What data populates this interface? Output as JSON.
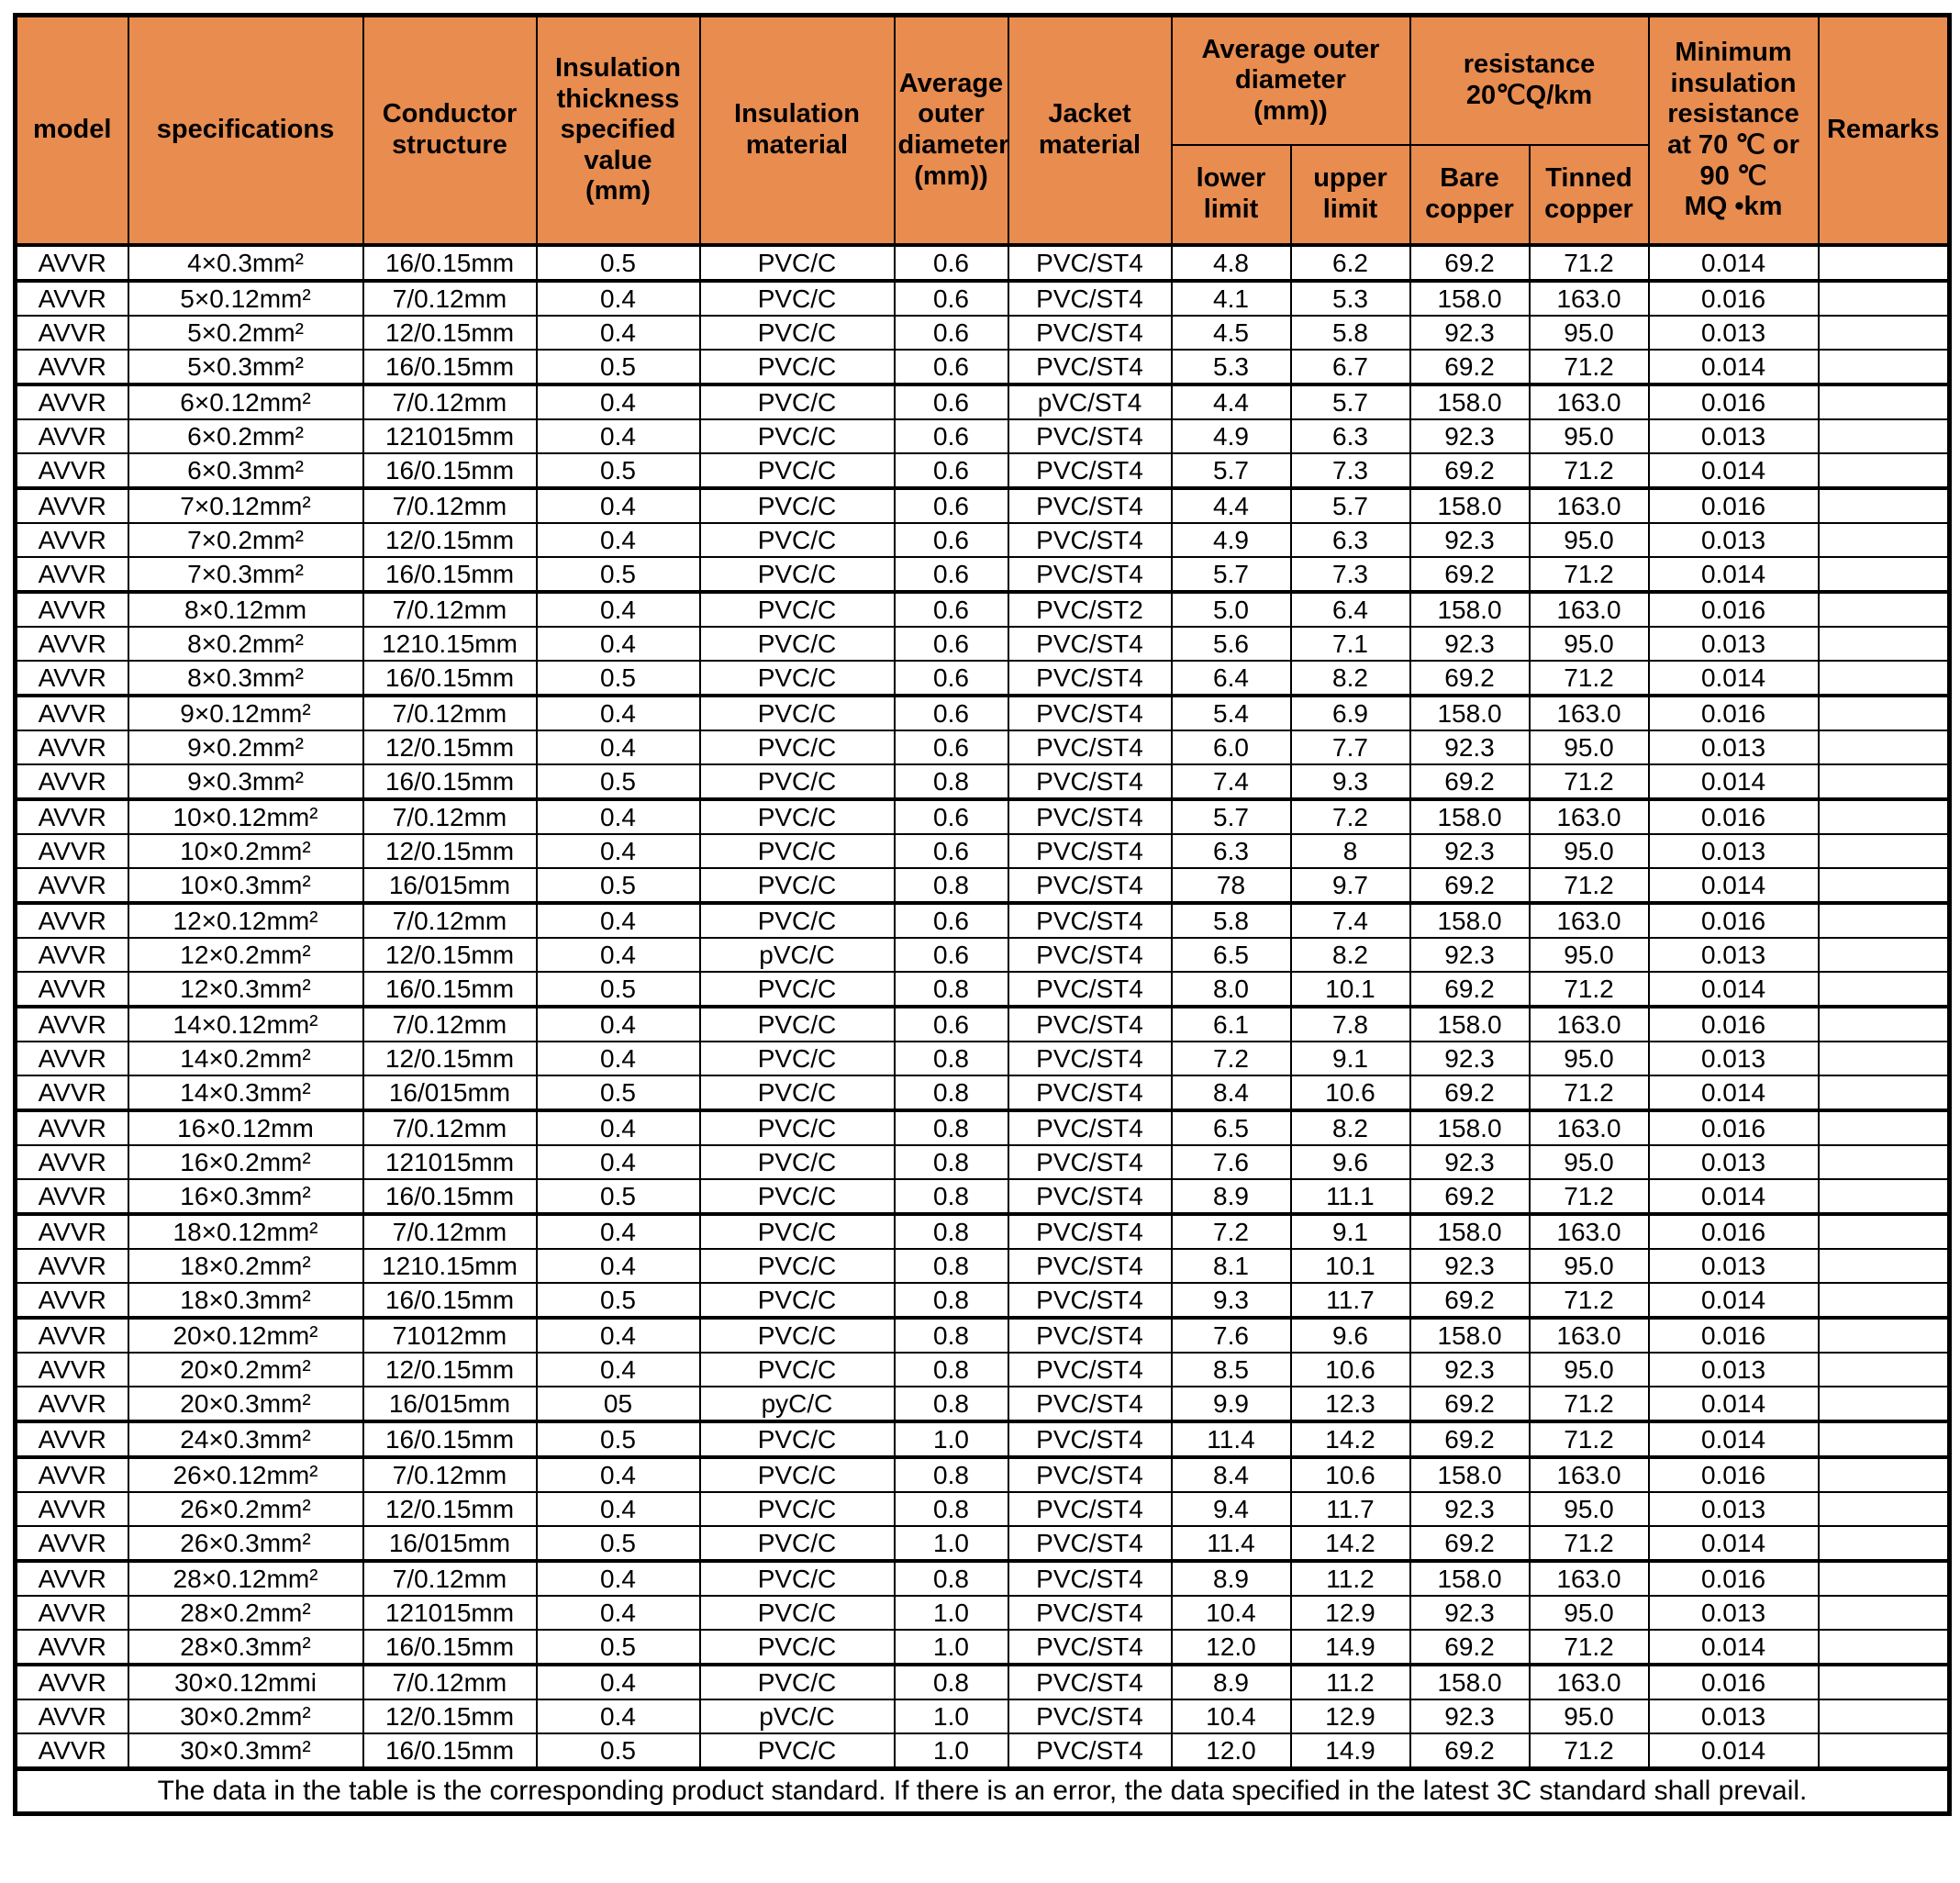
{
  "colors": {
    "header_bg": "#E88C50",
    "border": "#000000",
    "row_bg": "#FFFFFF"
  },
  "table": {
    "header": {
      "model": "model",
      "specifications": "specifications",
      "conductor_structure": "Conductor\nstructure",
      "insulation_thickness": "Insulation\nthickness\nspecified\nvalue\n(mm)",
      "insulation_material": "Insulation\nmaterial",
      "avg_outer_diameter": "Average\nouter\ndiameter\n(mm))",
      "jacket_material": "Jacket\nmaterial",
      "avg_outer_diameter_2": "Average outer\ndiameter\n(mm))",
      "lower_limit": "lower\nlimit",
      "upper_limit": "upper\nlimit",
      "resistance": "resistance\n20℃Q/km",
      "bare_copper": "Bare\ncopper",
      "tinned_copper": "Tinned\ncopper",
      "min_insulation": "Minimum\ninsulation\nresistance\nat 70 ℃ or\n90 ℃\nMQ •km",
      "remarks": "Remarks"
    },
    "rows": [
      {
        "model": "AVVR",
        "spec": "4×0.3mm²",
        "conductor": "16/0.15mm",
        "thickness": "0.5",
        "ins_material": "PVC/C",
        "avg_od": "0.6",
        "jacket": "PVC/ST4",
        "lower": "4.8",
        "upper": "6.2",
        "bare": "69.2",
        "tinned": "71.2",
        "min_ins": "0.014",
        "remarks": ""
      },
      {
        "model": "AVVR",
        "spec": "5×0.12mm²",
        "conductor": "7/0.12mm",
        "thickness": "0.4",
        "ins_material": "PVC/C",
        "avg_od": "0.6",
        "jacket": "PVC/ST4",
        "lower": "4.1",
        "upper": "5.3",
        "bare": "158.0",
        "tinned": "163.0",
        "min_ins": "0.016",
        "remarks": ""
      },
      {
        "model": "AVVR",
        "spec": "5×0.2mm²",
        "conductor": "12/0.15mm",
        "thickness": "0.4",
        "ins_material": "PVC/C",
        "avg_od": "0.6",
        "jacket": "PVC/ST4",
        "lower": "4.5",
        "upper": "5.8",
        "bare": "92.3",
        "tinned": "95.0",
        "min_ins": "0.013",
        "remarks": ""
      },
      {
        "model": "AVVR",
        "spec": "5×0.3mm²",
        "conductor": "16/0.15mm",
        "thickness": "0.5",
        "ins_material": "PVC/C",
        "avg_od": "0.6",
        "jacket": "PVC/ST4",
        "lower": "5.3",
        "upper": "6.7",
        "bare": "69.2",
        "tinned": "71.2",
        "min_ins": "0.014",
        "remarks": ""
      },
      {
        "model": "AVVR",
        "spec": "6×0.12mm²",
        "conductor": "7/0.12mm",
        "thickness": "0.4",
        "ins_material": "PVC/C",
        "avg_od": "0.6",
        "jacket": "pVC/ST4",
        "lower": "4.4",
        "upper": "5.7",
        "bare": "158.0",
        "tinned": "163.0",
        "min_ins": "0.016",
        "remarks": ""
      },
      {
        "model": "AVVR",
        "spec": "6×0.2mm²",
        "conductor": "121015mm",
        "thickness": "0.4",
        "ins_material": "PVC/C",
        "avg_od": "0.6",
        "jacket": "PVC/ST4",
        "lower": "4.9",
        "upper": "6.3",
        "bare": "92.3",
        "tinned": "95.0",
        "min_ins": "0.013",
        "remarks": ""
      },
      {
        "model": "AVVR",
        "spec": "6×0.3mm²",
        "conductor": "16/0.15mm",
        "thickness": "0.5",
        "ins_material": "PVC/C",
        "avg_od": "0.6",
        "jacket": "PVC/ST4",
        "lower": "5.7",
        "upper": "7.3",
        "bare": "69.2",
        "tinned": "71.2",
        "min_ins": "0.014",
        "remarks": ""
      },
      {
        "model": "AVVR",
        "spec": "7×0.12mm²",
        "conductor": "7/0.12mm",
        "thickness": "0.4",
        "ins_material": "PVC/C",
        "avg_od": "0.6",
        "jacket": "PVC/ST4",
        "lower": "4.4",
        "upper": "5.7",
        "bare": "158.0",
        "tinned": "163.0",
        "min_ins": "0.016",
        "remarks": ""
      },
      {
        "model": "AVVR",
        "spec": "7×0.2mm²",
        "conductor": "12/0.15mm",
        "thickness": "0.4",
        "ins_material": "PVC/C",
        "avg_od": "0.6",
        "jacket": "PVC/ST4",
        "lower": "4.9",
        "upper": "6.3",
        "bare": "92.3",
        "tinned": "95.0",
        "min_ins": "0.013",
        "remarks": ""
      },
      {
        "model": "AVVR",
        "spec": "7×0.3mm²",
        "conductor": "16/0.15mm",
        "thickness": "0.5",
        "ins_material": "PVC/C",
        "avg_od": "0.6",
        "jacket": "PVC/ST4",
        "lower": "5.7",
        "upper": "7.3",
        "bare": "69.2",
        "tinned": "71.2",
        "min_ins": "0.014",
        "remarks": ""
      },
      {
        "model": "AVVR",
        "spec": "8×0.12mm",
        "conductor": "7/0.12mm",
        "thickness": "0.4",
        "ins_material": "PVC/C",
        "avg_od": "0.6",
        "jacket": "PVC/ST2",
        "lower": "5.0",
        "upper": "6.4",
        "bare": "158.0",
        "tinned": "163.0",
        "min_ins": "0.016",
        "remarks": ""
      },
      {
        "model": "AVVR",
        "spec": "8×0.2mm²",
        "conductor": "1210.15mm",
        "thickness": "0.4",
        "ins_material": "PVC/C",
        "avg_od": "0.6",
        "jacket": "PVC/ST4",
        "lower": "5.6",
        "upper": "7.1",
        "bare": "92.3",
        "tinned": "95.0",
        "min_ins": "0.013",
        "remarks": ""
      },
      {
        "model": "AVVR",
        "spec": "8×0.3mm²",
        "conductor": "16/0.15mm",
        "thickness": "0.5",
        "ins_material": "PVC/C",
        "avg_od": "0.6",
        "jacket": "PVC/ST4",
        "lower": "6.4",
        "upper": "8.2",
        "bare": "69.2",
        "tinned": "71.2",
        "min_ins": "0.014",
        "remarks": ""
      },
      {
        "model": "AVVR",
        "spec": "9×0.12mm²",
        "conductor": "7/0.12mm",
        "thickness": "0.4",
        "ins_material": "PVC/C",
        "avg_od": "0.6",
        "jacket": "PVC/ST4",
        "lower": "5.4",
        "upper": "6.9",
        "bare": "158.0",
        "tinned": "163.0",
        "min_ins": "0.016",
        "remarks": ""
      },
      {
        "model": "AVVR",
        "spec": "9×0.2mm²",
        "conductor": "12/0.15mm",
        "thickness": "0.4",
        "ins_material": "PVC/C",
        "avg_od": "0.6",
        "jacket": "PVC/ST4",
        "lower": "6.0",
        "upper": "7.7",
        "bare": "92.3",
        "tinned": "95.0",
        "min_ins": "0.013",
        "remarks": ""
      },
      {
        "model": "AVVR",
        "spec": "9×0.3mm²",
        "conductor": "16/0.15mm",
        "thickness": "0.5",
        "ins_material": "PVC/C",
        "avg_od": "0.8",
        "jacket": "PVC/ST4",
        "lower": "7.4",
        "upper": "9.3",
        "bare": "69.2",
        "tinned": "71.2",
        "min_ins": "0.014",
        "remarks": ""
      },
      {
        "model": "AVVR",
        "spec": "10×0.12mm²",
        "conductor": "7/0.12mm",
        "thickness": "0.4",
        "ins_material": "PVC/C",
        "avg_od": "0.6",
        "jacket": "PVC/ST4",
        "lower": "5.7",
        "upper": "7.2",
        "bare": "158.0",
        "tinned": "163.0",
        "min_ins": "0.016",
        "remarks": ""
      },
      {
        "model": "AVVR",
        "spec": "10×0.2mm²",
        "conductor": "12/0.15mm",
        "thickness": "0.4",
        "ins_material": "PVC/C",
        "avg_od": "0.6",
        "jacket": "PVC/ST4",
        "lower": "6.3",
        "upper": "8",
        "bare": "92.3",
        "tinned": "95.0",
        "min_ins": "0.013",
        "remarks": ""
      },
      {
        "model": "AVVR",
        "spec": "10×0.3mm²",
        "conductor": "16/015mm",
        "thickness": "0.5",
        "ins_material": "PVC/C",
        "avg_od": "0.8",
        "jacket": "PVC/ST4",
        "lower": "78",
        "upper": "9.7",
        "bare": "69.2",
        "tinned": "71.2",
        "min_ins": "0.014",
        "remarks": ""
      },
      {
        "model": "AVVR",
        "spec": "12×0.12mm²",
        "conductor": "7/0.12mm",
        "thickness": "0.4",
        "ins_material": "PVC/C",
        "avg_od": "0.6",
        "jacket": "PVC/ST4",
        "lower": "5.8",
        "upper": "7.4",
        "bare": "158.0",
        "tinned": "163.0",
        "min_ins": "0.016",
        "remarks": ""
      },
      {
        "model": "AVVR",
        "spec": "12×0.2mm²",
        "conductor": "12/0.15mm",
        "thickness": "0.4",
        "ins_material": "pVC/C",
        "avg_od": "0.6",
        "jacket": "PVC/ST4",
        "lower": "6.5",
        "upper": "8.2",
        "bare": "92.3",
        "tinned": "95.0",
        "min_ins": "0.013",
        "remarks": ""
      },
      {
        "model": "AVVR",
        "spec": "12×0.3mm²",
        "conductor": "16/0.15mm",
        "thickness": "0.5",
        "ins_material": "PVC/C",
        "avg_od": "0.8",
        "jacket": "PVC/ST4",
        "lower": "8.0",
        "upper": "10.1",
        "bare": "69.2",
        "tinned": "71.2",
        "min_ins": "0.014",
        "remarks": ""
      },
      {
        "model": "AVVR",
        "spec": "14×0.12mm²",
        "conductor": "7/0.12mm",
        "thickness": "0.4",
        "ins_material": "PVC/C",
        "avg_od": "0.6",
        "jacket": "PVC/ST4",
        "lower": "6.1",
        "upper": "7.8",
        "bare": "158.0",
        "tinned": "163.0",
        "min_ins": "0.016",
        "remarks": ""
      },
      {
        "model": "AVVR",
        "spec": "14×0.2mm²",
        "conductor": "12/0.15mm",
        "thickness": "0.4",
        "ins_material": "PVC/C",
        "avg_od": "0.8",
        "jacket": "PVC/ST4",
        "lower": "7.2",
        "upper": "9.1",
        "bare": "92.3",
        "tinned": "95.0",
        "min_ins": "0.013",
        "remarks": ""
      },
      {
        "model": "AVVR",
        "spec": "14×0.3mm²",
        "conductor": "16/015mm",
        "thickness": "0.5",
        "ins_material": "PVC/C",
        "avg_od": "0.8",
        "jacket": "PVC/ST4",
        "lower": "8.4",
        "upper": "10.6",
        "bare": "69.2",
        "tinned": "71.2",
        "min_ins": "0.014",
        "remarks": ""
      },
      {
        "model": "AVVR",
        "spec": "16×0.12mm",
        "conductor": "7/0.12mm",
        "thickness": "0.4",
        "ins_material": "PVC/C",
        "avg_od": "0.8",
        "jacket": "PVC/ST4",
        "lower": "6.5",
        "upper": "8.2",
        "bare": "158.0",
        "tinned": "163.0",
        "min_ins": "0.016",
        "remarks": ""
      },
      {
        "model": "AVVR",
        "spec": "16×0.2mm²",
        "conductor": "121015mm",
        "thickness": "0.4",
        "ins_material": "PVC/C",
        "avg_od": "0.8",
        "jacket": "PVC/ST4",
        "lower": "7.6",
        "upper": "9.6",
        "bare": "92.3",
        "tinned": "95.0",
        "min_ins": "0.013",
        "remarks": ""
      },
      {
        "model": "AVVR",
        "spec": "16×0.3mm²",
        "conductor": "16/0.15mm",
        "thickness": "0.5",
        "ins_material": "PVC/C",
        "avg_od": "0.8",
        "jacket": "PVC/ST4",
        "lower": "8.9",
        "upper": "11.1",
        "bare": "69.2",
        "tinned": "71.2",
        "min_ins": "0.014",
        "remarks": ""
      },
      {
        "model": "AVVR",
        "spec": "18×0.12mm²",
        "conductor": "7/0.12mm",
        "thickness": "0.4",
        "ins_material": "PVC/C",
        "avg_od": "0.8",
        "jacket": "PVC/ST4",
        "lower": "7.2",
        "upper": "9.1",
        "bare": "158.0",
        "tinned": "163.0",
        "min_ins": "0.016",
        "remarks": ""
      },
      {
        "model": "AVVR",
        "spec": "18×0.2mm²",
        "conductor": "1210.15mm",
        "thickness": "0.4",
        "ins_material": "PVC/C",
        "avg_od": "0.8",
        "jacket": "PVC/ST4",
        "lower": "8.1",
        "upper": "10.1",
        "bare": "92.3",
        "tinned": "95.0",
        "min_ins": "0.013",
        "remarks": ""
      },
      {
        "model": "AVVR",
        "spec": "18×0.3mm²",
        "conductor": "16/0.15mm",
        "thickness": "0.5",
        "ins_material": "PVC/C",
        "avg_od": "0.8",
        "jacket": "PVC/ST4",
        "lower": "9.3",
        "upper": "11.7",
        "bare": "69.2",
        "tinned": "71.2",
        "min_ins": "0.014",
        "remarks": ""
      },
      {
        "model": "AVVR",
        "spec": "20×0.12mm²",
        "conductor": "71012mm",
        "thickness": "0.4",
        "ins_material": "PVC/C",
        "avg_od": "0.8",
        "jacket": "PVC/ST4",
        "lower": "7.6",
        "upper": "9.6",
        "bare": "158.0",
        "tinned": "163.0",
        "min_ins": "0.016",
        "remarks": ""
      },
      {
        "model": "AVVR",
        "spec": "20×0.2mm²",
        "conductor": "12/0.15mm",
        "thickness": "0.4",
        "ins_material": "PVC/C",
        "avg_od": "0.8",
        "jacket": "PVC/ST4",
        "lower": "8.5",
        "upper": "10.6",
        "bare": "92.3",
        "tinned": "95.0",
        "min_ins": "0.013",
        "remarks": ""
      },
      {
        "model": "AVVR",
        "spec": "20×0.3mm²",
        "conductor": "16/015mm",
        "thickness": "05",
        "ins_material": "pyC/C",
        "avg_od": "0.8",
        "jacket": "PVC/ST4",
        "lower": "9.9",
        "upper": "12.3",
        "bare": "69.2",
        "tinned": "71.2",
        "min_ins": "0.014",
        "remarks": ""
      },
      {
        "model": "AVVR",
        "spec": "24×0.3mm²",
        "conductor": "16/0.15mm",
        "thickness": "0.5",
        "ins_material": "PVC/C",
        "avg_od": "1.0",
        "jacket": "PVC/ST4",
        "lower": "11.4",
        "upper": "14.2",
        "bare": "69.2",
        "tinned": "71.2",
        "min_ins": "0.014",
        "remarks": ""
      },
      {
        "model": "AVVR",
        "spec": "26×0.12mm²",
        "conductor": "7/0.12mm",
        "thickness": "0.4",
        "ins_material": "PVC/C",
        "avg_od": "0.8",
        "jacket": "PVC/ST4",
        "lower": "8.4",
        "upper": "10.6",
        "bare": "158.0",
        "tinned": "163.0",
        "min_ins": "0.016",
        "remarks": ""
      },
      {
        "model": "AVVR",
        "spec": "26×0.2mm²",
        "conductor": "12/0.15mm",
        "thickness": "0.4",
        "ins_material": "PVC/C",
        "avg_od": "0.8",
        "jacket": "PVC/ST4",
        "lower": "9.4",
        "upper": "11.7",
        "bare": "92.3",
        "tinned": "95.0",
        "min_ins": "0.013",
        "remarks": ""
      },
      {
        "model": "AVVR",
        "spec": "26×0.3mm²",
        "conductor": "16/015mm",
        "thickness": "0.5",
        "ins_material": "PVC/C",
        "avg_od": "1.0",
        "jacket": "PVC/ST4",
        "lower": "11.4",
        "upper": "14.2",
        "bare": "69.2",
        "tinned": "71.2",
        "min_ins": "0.014",
        "remarks": ""
      },
      {
        "model": "AVVR",
        "spec": "28×0.12mm²",
        "conductor": "7/0.12mm",
        "thickness": "0.4",
        "ins_material": "PVC/C",
        "avg_od": "0.8",
        "jacket": "PVC/ST4",
        "lower": "8.9",
        "upper": "11.2",
        "bare": "158.0",
        "tinned": "163.0",
        "min_ins": "0.016",
        "remarks": ""
      },
      {
        "model": "AVVR",
        "spec": "28×0.2mm²",
        "conductor": "121015mm",
        "thickness": "0.4",
        "ins_material": "PVC/C",
        "avg_od": "1.0",
        "jacket": "PVC/ST4",
        "lower": "10.4",
        "upper": "12.9",
        "bare": "92.3",
        "tinned": "95.0",
        "min_ins": "0.013",
        "remarks": ""
      },
      {
        "model": "AVVR",
        "spec": "28×0.3mm²",
        "conductor": "16/0.15mm",
        "thickness": "0.5",
        "ins_material": "PVC/C",
        "avg_od": "1.0",
        "jacket": "PVC/ST4",
        "lower": "12.0",
        "upper": "14.9",
        "bare": "69.2",
        "tinned": "71.2",
        "min_ins": "0.014",
        "remarks": ""
      },
      {
        "model": "AVVR",
        "spec": "30×0.12mmi",
        "conductor": "7/0.12mm",
        "thickness": "0.4",
        "ins_material": "PVC/C",
        "avg_od": "0.8",
        "jacket": "PVC/ST4",
        "lower": "8.9",
        "upper": "11.2",
        "bare": "158.0",
        "tinned": "163.0",
        "min_ins": "0.016",
        "remarks": ""
      },
      {
        "model": "AVVR",
        "spec": "30×0.2mm²",
        "conductor": "12/0.15mm",
        "thickness": "0.4",
        "ins_material": "pVC/C",
        "avg_od": "1.0",
        "jacket": "PVC/ST4",
        "lower": "10.4",
        "upper": "12.9",
        "bare": "92.3",
        "tinned": "95.0",
        "min_ins": "0.013",
        "remarks": ""
      },
      {
        "model": "AVVR",
        "spec": "30×0.3mm²",
        "conductor": "16/0.15mm",
        "thickness": "0.5",
        "ins_material": "PVC/C",
        "avg_od": "1.0",
        "jacket": "PVC/ST4",
        "lower": "12.0",
        "upper": "14.9",
        "bare": "69.2",
        "tinned": "71.2",
        "min_ins": "0.014",
        "remarks": ""
      }
    ],
    "footer": "The data in the table is the corresponding product standard. If there is an error, the data specified in the latest 3C standard shall prevail."
  }
}
